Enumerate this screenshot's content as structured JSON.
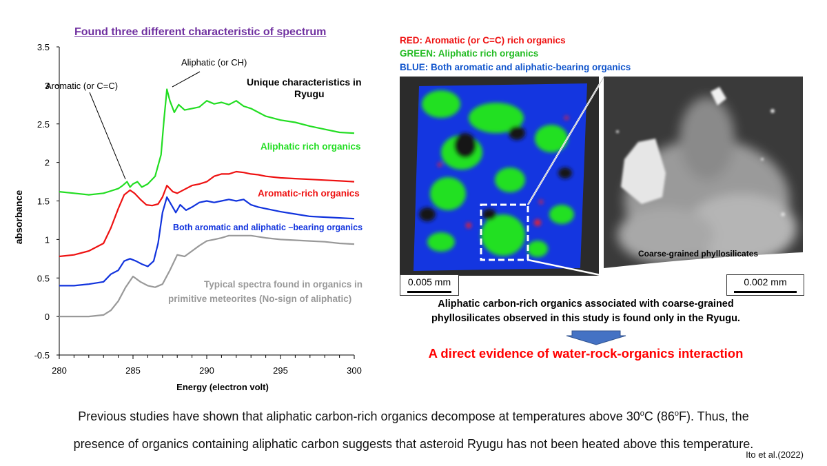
{
  "figure": {
    "title": "Found three different characteristic of spectrum",
    "footnote_line1": "Previous studies have shown that aliphatic carbon-rich organics decompose at temperatures above 30ºC (86ºF). Thus, the",
    "footnote_line2": "presence of organics containing aliphatic carbon suggests that asteroid Ryugu has not been heated above this temperature.",
    "citation": "Ito et al.(2022)"
  },
  "chart_data": {
    "type": "line",
    "xlabel": "Energy (electron volt)",
    "ylabel": "absorbance",
    "xlim": [
      280,
      300
    ],
    "ylim": [
      -0.5,
      3.5
    ],
    "xticks": [
      280,
      285,
      290,
      295,
      300
    ],
    "yticks": [
      3.5,
      3,
      2.5,
      2,
      1.5,
      1,
      0.5,
      0,
      -0.5
    ],
    "ytick_labels": [
      "3.5",
      "3",
      "2.5",
      "2",
      "1.5",
      "1",
      "0.5",
      "0",
      "-0.5"
    ],
    "series": [
      {
        "name": "Aliphatic rich organics",
        "color": "#22dd22",
        "x": [
          280,
          281,
          282,
          283,
          283.5,
          284,
          284.3,
          284.6,
          284.8,
          285,
          285.3,
          285.6,
          286,
          286.5,
          286.9,
          287.1,
          287.3,
          287.5,
          287.8,
          288.1,
          288.5,
          289,
          289.5,
          290,
          290.5,
          291,
          291.5,
          292,
          292.5,
          293,
          293.5,
          294,
          295,
          296,
          297,
          298,
          299,
          300
        ],
        "y": [
          1.62,
          1.6,
          1.58,
          1.6,
          1.63,
          1.66,
          1.7,
          1.75,
          1.68,
          1.72,
          1.75,
          1.68,
          1.72,
          1.82,
          2.1,
          2.55,
          2.95,
          2.8,
          2.65,
          2.75,
          2.68,
          2.7,
          2.72,
          2.8,
          2.76,
          2.78,
          2.75,
          2.8,
          2.73,
          2.7,
          2.65,
          2.6,
          2.55,
          2.52,
          2.47,
          2.43,
          2.39,
          2.38
        ]
      },
      {
        "name": "Aromatic-rich organics",
        "color": "#ee1111",
        "x": [
          280,
          281,
          282,
          283,
          283.5,
          284,
          284.4,
          284.8,
          285.1,
          285.5,
          285.9,
          286.3,
          286.7,
          287,
          287.3,
          287.7,
          288,
          288.5,
          289,
          289.5,
          290,
          290.5,
          291,
          291.5,
          292,
          292.5,
          293,
          293.5,
          294,
          295,
          296,
          297,
          298,
          299,
          300
        ],
        "y": [
          0.78,
          0.8,
          0.85,
          0.95,
          1.15,
          1.4,
          1.58,
          1.64,
          1.6,
          1.52,
          1.45,
          1.44,
          1.46,
          1.55,
          1.7,
          1.62,
          1.6,
          1.65,
          1.7,
          1.72,
          1.75,
          1.82,
          1.85,
          1.85,
          1.88,
          1.87,
          1.85,
          1.84,
          1.82,
          1.8,
          1.79,
          1.78,
          1.77,
          1.76,
          1.75
        ]
      },
      {
        "name": "Both aromatic and aliphatic –bearing organics",
        "color": "#1133dd",
        "x": [
          280,
          281,
          282,
          283,
          283.5,
          284,
          284.4,
          284.8,
          285.2,
          285.6,
          286,
          286.4,
          286.7,
          287,
          287.3,
          287.6,
          287.9,
          288.2,
          288.6,
          289,
          289.5,
          290,
          290.5,
          291,
          291.5,
          292,
          292.5,
          293,
          293.5,
          294,
          295,
          296,
          297,
          298,
          299,
          300
        ],
        "y": [
          0.4,
          0.4,
          0.42,
          0.45,
          0.55,
          0.6,
          0.72,
          0.75,
          0.72,
          0.68,
          0.65,
          0.72,
          0.95,
          1.35,
          1.55,
          1.45,
          1.35,
          1.45,
          1.38,
          1.42,
          1.48,
          1.5,
          1.48,
          1.5,
          1.52,
          1.5,
          1.52,
          1.45,
          1.42,
          1.4,
          1.36,
          1.33,
          1.3,
          1.29,
          1.28,
          1.27
        ]
      },
      {
        "name": "Typical spectra found in organics in primitive meteorites (No-sign of aliphatic)",
        "color": "#999999",
        "x": [
          280,
          281,
          282,
          283,
          283.5,
          284,
          284.5,
          285,
          285.5,
          286,
          286.5,
          287,
          287.5,
          288,
          288.5,
          289,
          289.5,
          290,
          290.5,
          291,
          291.5,
          292,
          293,
          294,
          295,
          296,
          297,
          298,
          299,
          300
        ],
        "y": [
          0,
          0,
          0,
          0.02,
          0.08,
          0.2,
          0.38,
          0.52,
          0.45,
          0.4,
          0.38,
          0.42,
          0.6,
          0.8,
          0.78,
          0.85,
          0.92,
          0.98,
          1.0,
          1.02,
          1.05,
          1.05,
          1.05,
          1.02,
          1.0,
          0.99,
          0.98,
          0.97,
          0.95,
          0.94
        ]
      }
    ],
    "annotations": [
      {
        "text": "Aliphatic (or CH)"
      },
      {
        "text": "Aromatic (or C=C)"
      },
      {
        "text": "Unique characteristics in Ryugu"
      }
    ]
  },
  "legend": {
    "red": "RED: Aromatic (or C=C) rich organics",
    "green": "GREEN: Aliphatic rich organics",
    "blue": "BLUE: Both aromatic and aliphatic-bearing organics"
  },
  "images": {
    "left_scale": "0.005 mm",
    "right_scale": "0.002 mm",
    "right_label": "Coarse-grained phyllosilicates"
  },
  "caption": {
    "line1": "Aliphatic carbon-rich organics associated with coarse-grained",
    "line2": "phyllosilicates observed in this study is found only in the Ryugu.",
    "evidence": "A direct evidence of water-rock-organics interaction"
  }
}
